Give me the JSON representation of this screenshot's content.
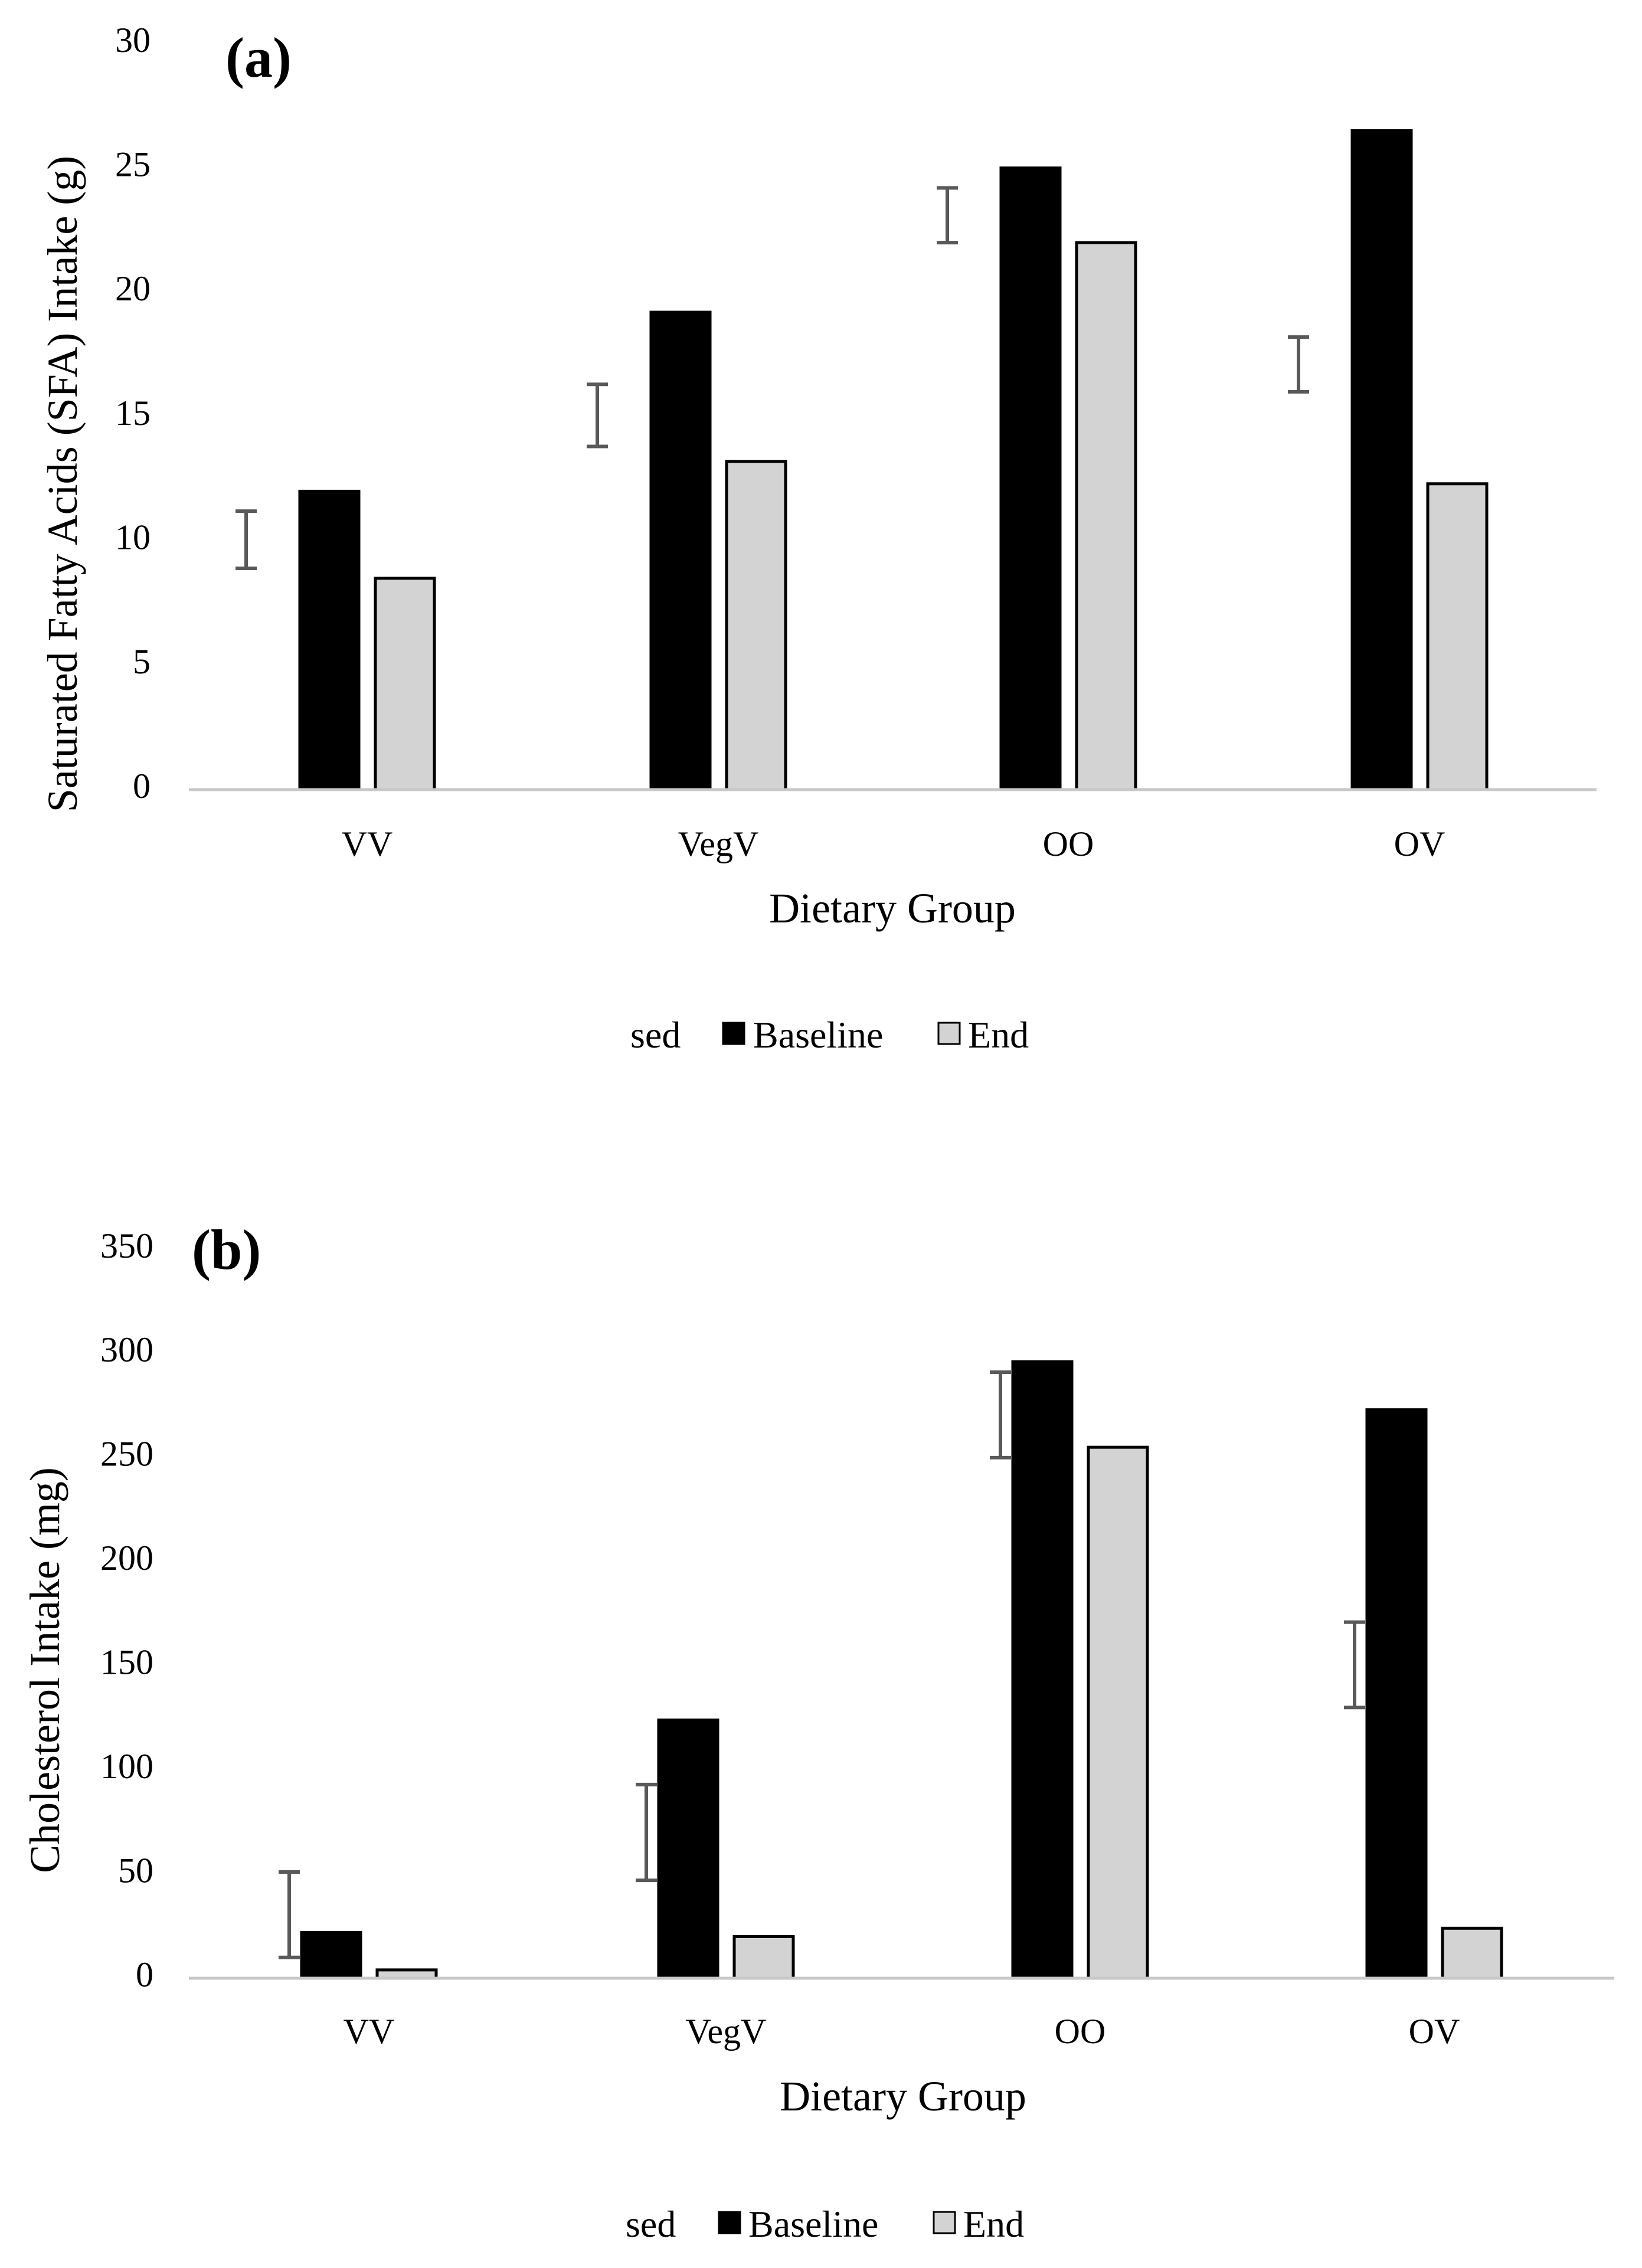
{
  "chart_data": [
    {
      "type": "bar",
      "panel_label": "(a)",
      "categories": [
        "VV",
        "VegV",
        "OO",
        "OV"
      ],
      "series": [
        {
          "name": "Baseline",
          "color": "#000000",
          "values": [
            12.0,
            19.2,
            25.0,
            26.5
          ]
        },
        {
          "name": "End",
          "color": "#d3d3d3",
          "values": [
            8.5,
            13.2,
            22.0,
            12.3
          ]
        }
      ],
      "sed": {
        "name": "sed",
        "low": [
          8.9,
          13.8,
          22.0,
          16.0
        ],
        "high": [
          11.2,
          16.3,
          24.2,
          18.2
        ]
      },
      "xlabel": "Dietary Group",
      "ylabel": "Saturated Fatty Acids (SFA) Intake (g)",
      "ylim": [
        0,
        30
      ],
      "yticks": [
        "0",
        "5",
        "10",
        "15",
        "20",
        "25",
        "30"
      ],
      "legend": [
        "sed",
        "Baseline",
        "End"
      ],
      "legend_position": "bottom"
    },
    {
      "type": "bar",
      "panel_label": "(b)",
      "categories": [
        "VV",
        "VegV",
        "OO",
        "OV"
      ],
      "series": [
        {
          "name": "Baseline",
          "color": "#000000",
          "values": [
            22,
            124,
            296,
            273
          ]
        },
        {
          "name": "End",
          "color": "#d3d3d3",
          "values": [
            4,
            20,
            255,
            24
          ]
        }
      ],
      "sed": {
        "name": "sed",
        "low": [
          10,
          47,
          250,
          130
        ],
        "high": [
          51,
          93,
          291,
          171
        ]
      },
      "xlabel": "Dietary Group",
      "ylabel": "Cholesterol Intake (mg)",
      "ylim": [
        0,
        350
      ],
      "yticks": [
        "0",
        "50",
        "100",
        "150",
        "200",
        "250",
        "300",
        "350"
      ],
      "legend": [
        "sed",
        "Baseline",
        "End"
      ],
      "legend_position": "bottom"
    }
  ]
}
